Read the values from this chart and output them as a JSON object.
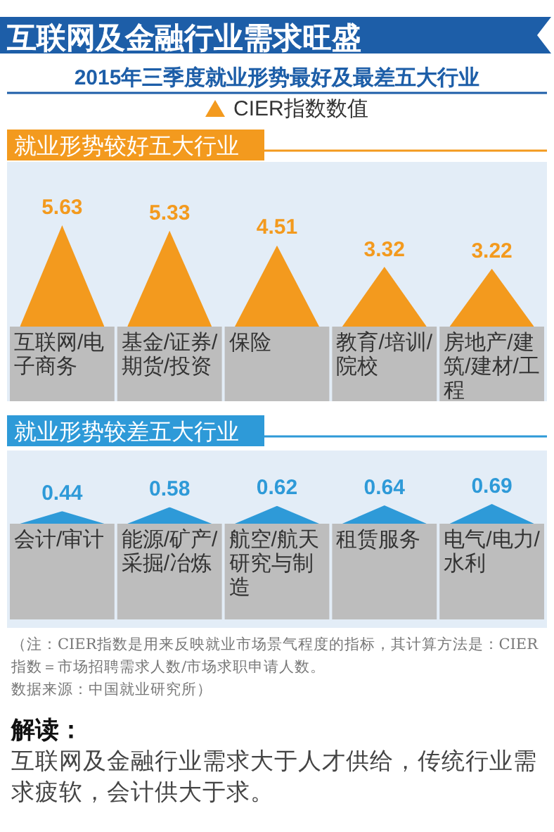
{
  "chart_data": [
    {
      "type": "bar",
      "title": "互联网及金融行业需求旺盛",
      "subtitle": "2015年三季度就业形势最好及最差五大行业",
      "annotations": [
        "就业形势较好五大行业"
      ],
      "categories": [
        "互联网/电子商务",
        "基金/证券/期货/投资",
        "保险",
        "教育/培训/院校",
        "房地产/建筑/建材/工程"
      ],
      "series": [
        {
          "name": "CIER指数数值",
          "color": "#f39a1e",
          "values": [
            5.63,
            5.33,
            4.51,
            3.32,
            3.22
          ]
        }
      ],
      "data_labels": true,
      "legend": "top"
    },
    {
      "type": "bar",
      "title": "就业形势较差五大行业",
      "categories": [
        "会计/审计",
        "能源/矿产/采掘/冶炼",
        "航空/航天研究与制造",
        "租赁服务",
        "电气/电力/水利"
      ],
      "series": [
        {
          "color": "#2e9ad8",
          "values": [
            0.44,
            0.58,
            0.62,
            0.64,
            0.69
          ]
        }
      ],
      "data_labels": true,
      "annotations": [
        "（注：CIER指数是用来反映就业市场景气程度的指标，其计算方法是：CIER指数＝市场招聘需求人数/市场求职申请人数。",
        "数据来源：中国就业研究所）",
        "解读：",
        "互联网及金融行业需求大于人才供给，传统行业需求疲软，会计供大于求。"
      ]
    }
  ]
}
